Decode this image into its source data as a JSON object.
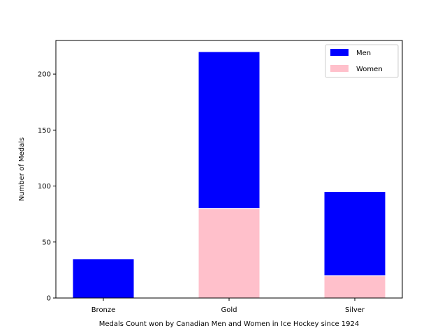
{
  "chart_data": {
    "type": "bar",
    "stacked": true,
    "title": "",
    "xlabel": "Medals Count won by Canadian Men and Women in Ice Hockey since 1924",
    "ylabel": "Number of Medals",
    "categories": [
      "Bronze",
      "Gold",
      "Silver"
    ],
    "series": [
      {
        "name": "Women",
        "values": [
          0,
          80,
          20
        ],
        "color": "#ffc0cb"
      },
      {
        "name": "Men",
        "values": [
          35,
          140,
          75
        ],
        "color": "#0000ff"
      }
    ],
    "ylim": [
      0,
      230
    ],
    "yticks": [
      0,
      50,
      100,
      150,
      200
    ],
    "legend": {
      "placement": "top-right",
      "entries": [
        "Men",
        "Women"
      ]
    },
    "grid": false
  }
}
